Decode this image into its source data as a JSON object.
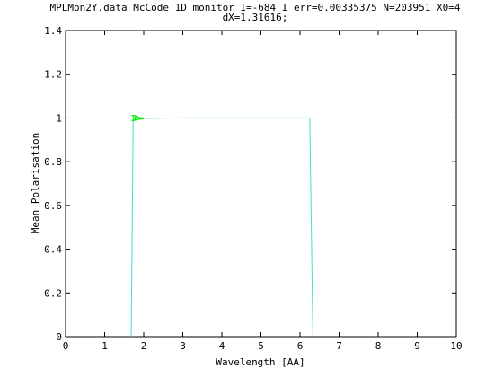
{
  "chart_data": {
    "type": "line",
    "title_lines": [
      "MPLMon2Y.data McCode 1D monitor I=-684 I_err=0.00335375 N=203951 X0=4",
      "dX=1.31616;"
    ],
    "xlabel": "Wavelength [AA]",
    "ylabel": "Mean Polarisation",
    "xlim": [
      0,
      10
    ],
    "ylim": [
      0,
      1.4
    ],
    "x_ticks": [
      0,
      1,
      2,
      3,
      4,
      5,
      6,
      7,
      8,
      9,
      10
    ],
    "y_ticks": [
      0,
      0.2,
      0.4,
      0.6,
      0.8,
      1,
      1.2,
      1.4
    ],
    "x_tick_labels": [
      "0",
      "1",
      "2",
      "3",
      "4",
      "5",
      "6",
      "7",
      "8",
      "9",
      "10"
    ],
    "y_tick_labels": [
      "0",
      "0.2",
      "0.4",
      "0.6",
      "0.8",
      "1",
      "1.2",
      "1.4"
    ],
    "grid": false,
    "line_color": "#40e0d0",
    "error_color": "#00ee00",
    "series": [
      {
        "x": [
          1.68,
          1.73,
          1.78,
          1.83,
          1.88,
          1.95,
          2.1,
          2.5,
          3,
          4,
          5,
          6,
          6.2,
          6.25,
          6.33
        ],
        "y": [
          0,
          0.99,
          1.0,
          0.999,
          0.998,
          0.998,
          0.998,
          0.999,
          1,
          1,
          1,
          1,
          1,
          1,
          0
        ]
      }
    ],
    "error_bars": [
      {
        "x": 1.73,
        "y": 1.0,
        "err": 0.012
      },
      {
        "x": 1.78,
        "y": 1.0,
        "err": 0.01
      },
      {
        "x": 1.83,
        "y": 0.999,
        "err": 0.006
      },
      {
        "x": 1.88,
        "y": 0.998,
        "err": 0.004
      },
      {
        "x": 1.95,
        "y": 0.998,
        "err": 0.003
      }
    ]
  }
}
